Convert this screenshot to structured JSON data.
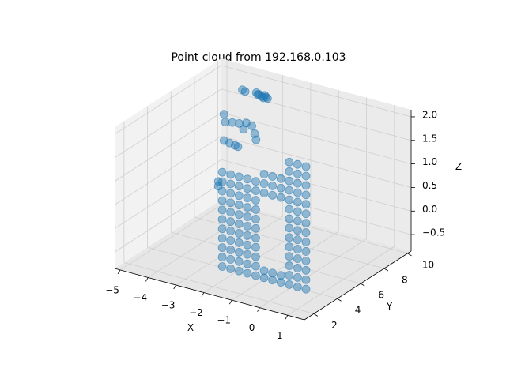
{
  "chart_data": {
    "type": "scatter3d",
    "title": "Point cloud from 192.168.0.103",
    "x_label": "X",
    "y_label": "Y",
    "z_label": "Z",
    "color": "#1f77b4",
    "grid": true,
    "xlim": [
      -5.2,
      1.6
    ],
    "ylim": [
      1.2,
      10.3
    ],
    "zlim": [
      -0.85,
      2.15
    ],
    "xticks": [
      {
        "value": -5,
        "label": "−5"
      },
      {
        "value": -4,
        "label": "−4"
      },
      {
        "value": -3,
        "label": "−3"
      },
      {
        "value": -2,
        "label": "−2"
      },
      {
        "value": -1,
        "label": "−1"
      },
      0,
      1
    ],
    "yticks": [
      2,
      4,
      6,
      8,
      10
    ],
    "zticks": [
      {
        "value": -0.5,
        "label": "−0.5"
      },
      {
        "value": 0,
        "label": "0.0"
      },
      {
        "value": 0.5,
        "label": "0.5"
      },
      {
        "value": 1,
        "label": "1.0"
      },
      {
        "value": 1.5,
        "label": "1.5"
      },
      {
        "value": 2,
        "label": "2.0"
      }
    ],
    "x": [
      -2.1,
      -2.1,
      -2.1,
      -2.1,
      -2.1,
      -2.1,
      -2.1,
      -2.1,
      -2.1,
      -2.1,
      -2.1,
      -1.8,
      -1.8,
      -1.8,
      -1.8,
      -1.8,
      -1.8,
      -1.8,
      -1.8,
      -1.8,
      -1.8,
      -1.8,
      -1.5,
      -1.5,
      -1.5,
      -1.5,
      -1.5,
      -1.5,
      -1.5,
      -1.5,
      -1.5,
      -1.5,
      -1.5,
      -1.2,
      -1.2,
      -1.2,
      -1.2,
      -1.2,
      -1.2,
      -1.2,
      -1.2,
      -1.2,
      -1.2,
      -1.2,
      -0.9,
      -0.9,
      -0.9,
      -0.9,
      -0.9,
      -0.9,
      -0.9,
      -0.9,
      -0.9,
      -0.9,
      -0.9,
      -0.6,
      -0.6,
      -0.3,
      -0.3,
      0,
      0,
      0.3,
      0.3,
      0.3,
      0.3,
      0.3,
      0.3,
      0.3,
      0.3,
      0.3,
      0.3,
      0.3,
      0.3,
      0.3,
      0.3,
      0.6,
      0.6,
      0.6,
      0.6,
      0.6,
      0.6,
      0.6,
      0.6,
      0.6,
      0.6,
      0.6,
      0.6,
      0.6,
      0.6,
      0.9,
      0.9,
      0.9,
      0.9,
      0.9,
      0.9,
      0.9,
      0.9,
      0.9,
      0.9,
      0.9,
      0.9,
      0.9,
      0.9,
      -0.6,
      -0.6,
      -0.6,
      -0.3,
      -0.3,
      -0.3,
      0,
      0,
      0,
      -3.9,
      -3.8,
      -3.4,
      -3.3,
      -3.2,
      -3.1,
      -3.05,
      -3.0,
      -3.15,
      -3.35,
      -3.3,
      -3.25,
      -3.0,
      -2.75,
      -2.5,
      -2.3,
      -2.2,
      -2.15,
      -2.6,
      -3.3,
      -3.1,
      -2.9,
      -2.8,
      -3.5,
      -3.5
    ],
    "y": [
      3,
      3,
      3,
      3,
      3,
      3,
      3,
      3,
      3,
      3,
      3,
      3,
      3,
      3,
      3,
      3,
      3,
      3,
      3,
      3,
      3,
      3,
      3,
      3,
      3,
      3,
      3,
      3,
      3,
      3,
      3,
      3,
      3,
      3,
      3,
      3,
      3,
      3,
      3,
      3,
      3,
      3,
      3,
      3,
      3,
      3,
      3,
      3,
      3,
      3,
      3,
      3,
      3,
      3,
      3,
      3,
      3,
      3,
      3,
      3,
      3,
      3,
      3,
      3,
      3,
      3,
      3,
      3,
      3,
      3,
      3,
      3,
      3,
      3,
      3,
      3,
      3,
      3,
      3,
      3,
      3,
      3,
      3,
      3,
      3,
      3,
      3,
      3,
      3,
      3,
      3,
      3,
      3,
      3,
      3,
      3,
      3,
      3,
      3,
      3,
      3,
      3,
      3,
      3,
      3,
      3,
      3,
      3,
      3,
      3,
      3,
      3,
      9,
      9,
      9,
      9,
      9,
      9,
      9,
      9,
      9,
      9,
      6,
      6,
      6,
      6,
      6,
      6,
      6,
      6,
      6,
      6,
      6,
      6,
      6,
      6,
      6
    ],
    "z": [
      -0.6,
      -0.4,
      -0.2,
      0,
      0.2,
      0.4,
      0.6,
      0.8,
      1.0,
      1.2,
      1.4,
      -0.6,
      -0.4,
      -0.2,
      0,
      0.2,
      0.4,
      0.6,
      0.8,
      1.0,
      1.2,
      1.4,
      -0.6,
      -0.4,
      -0.2,
      0,
      0.2,
      0.4,
      0.6,
      0.8,
      1.0,
      1.2,
      1.4,
      -0.6,
      -0.4,
      -0.2,
      0,
      0.2,
      0.4,
      0.6,
      0.8,
      1.0,
      1.2,
      1.4,
      -0.6,
      -0.4,
      -0.2,
      0,
      0.2,
      0.4,
      0.6,
      0.8,
      1.0,
      1.2,
      1.4,
      -0.6,
      -0.45,
      -0.6,
      -0.45,
      -0.6,
      -0.45,
      -0.6,
      -0.4,
      -0.2,
      0,
      0.2,
      0.4,
      0.6,
      0.8,
      1.0,
      1.2,
      1.4,
      1.6,
      1.8,
      2.0,
      -0.6,
      -0.4,
      -0.2,
      0,
      0.2,
      0.4,
      0.6,
      0.8,
      1.0,
      1.2,
      1.4,
      1.6,
      1.8,
      2.0,
      -0.6,
      -0.4,
      -0.2,
      0,
      0.2,
      0.4,
      0.6,
      0.8,
      1.0,
      1.2,
      1.4,
      1.6,
      1.8,
      2.0,
      1.2,
      1.4,
      1.6,
      1.2,
      1.4,
      1.6,
      1.2,
      1.4,
      1.6,
      1.9,
      1.88,
      1.92,
      1.9,
      1.87,
      1.91,
      1.88,
      1.86,
      1.85,
      1.89,
      1.96,
      1.8,
      1.83,
      1.85,
      1.9,
      1.87,
      1.72,
      1.6,
      1.75,
      1.4,
      1.38,
      1.36,
      1.35,
      0.4,
      0.5
    ]
  }
}
